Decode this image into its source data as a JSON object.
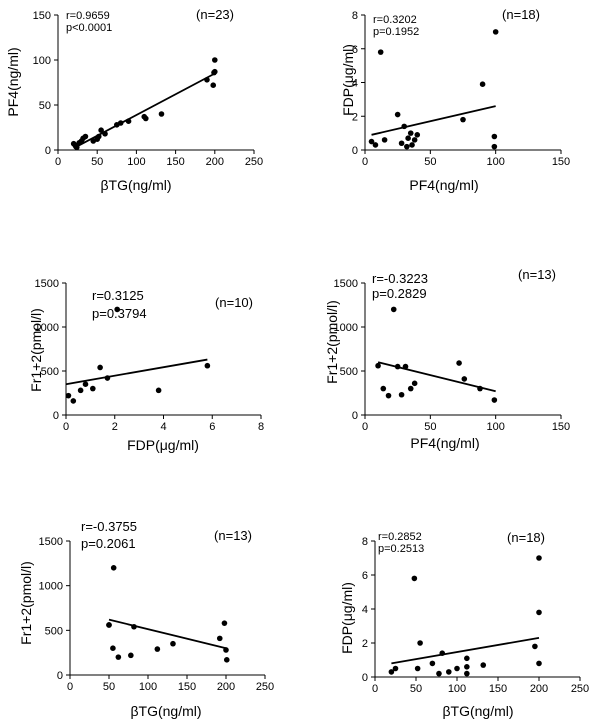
{
  "chart_data": [
    {
      "type": "scatter",
      "xlabel": "βTG(ng/ml)",
      "ylabel": "PF4(ng/ml)",
      "xlim": [
        0,
        250
      ],
      "ylim": [
        0,
        150
      ],
      "xticks": [
        "0",
        "50",
        "100",
        "150",
        "200",
        "250"
      ],
      "yticks": [
        "0",
        "50",
        "100",
        "150"
      ],
      "stat_r": "r=0.9659",
      "stat_p": "p<0.0001",
      "n_label": "(n=23)",
      "regression": [
        [
          20,
          2
        ],
        [
          200,
          85
        ]
      ],
      "points": [
        [
          20,
          7
        ],
        [
          24,
          3
        ],
        [
          27,
          8
        ],
        [
          30,
          10
        ],
        [
          32,
          13
        ],
        [
          35,
          15
        ],
        [
          45,
          10
        ],
        [
          50,
          12
        ],
        [
          52,
          15
        ],
        [
          55,
          22
        ],
        [
          60,
          18
        ],
        [
          75,
          28
        ],
        [
          80,
          30
        ],
        [
          90,
          32
        ],
        [
          110,
          37
        ],
        [
          112,
          35
        ],
        [
          132,
          40
        ],
        [
          190,
          78
        ],
        [
          198,
          72
        ],
        [
          199,
          86
        ],
        [
          200,
          100
        ],
        [
          200,
          87
        ],
        [
          22,
          5
        ]
      ]
    },
    {
      "type": "scatter",
      "xlabel": "PF4(ng/ml)",
      "ylabel": "FDP(μg/ml)",
      "xlim": [
        0,
        150
      ],
      "ylim": [
        0,
        8
      ],
      "xticks": [
        "0",
        "50",
        "100",
        "150"
      ],
      "yticks": [
        "0",
        "2",
        "4",
        "6",
        "8"
      ],
      "stat_r": "r=0.3202",
      "stat_p": "p=0.1952",
      "n_label": "(n=18)",
      "regression": [
        [
          5,
          0.9
        ],
        [
          100,
          2.6
        ]
      ],
      "points": [
        [
          5,
          0.5
        ],
        [
          8,
          0.3
        ],
        [
          12,
          5.8
        ],
        [
          15,
          0.6
        ],
        [
          25,
          2.1
        ],
        [
          28,
          0.4
        ],
        [
          30,
          1.4
        ],
        [
          32,
          0.2
        ],
        [
          33,
          0.7
        ],
        [
          35,
          1.0
        ],
        [
          36,
          0.3
        ],
        [
          38,
          0.6
        ],
        [
          40,
          0.9
        ],
        [
          75,
          1.8
        ],
        [
          90,
          3.9
        ],
        [
          99,
          0.8
        ],
        [
          100,
          7.0
        ],
        [
          99,
          0.2
        ]
      ]
    },
    {
      "type": "scatter",
      "xlabel": "FDP(μg/ml)",
      "ylabel": "Fr1+2(pmol/l)",
      "xlim": [
        0,
        8
      ],
      "ylim": [
        0,
        1500
      ],
      "xticks": [
        "0",
        "2",
        "4",
        "6",
        "8"
      ],
      "yticks": [
        "0",
        "500",
        "1000",
        "1500"
      ],
      "stat_r": "r=0.3125",
      "stat_p": "p=0.3794",
      "n_label": "(n=10)",
      "regression": [
        [
          0,
          350
        ],
        [
          5.8,
          630
        ]
      ],
      "points": [
        [
          0.1,
          220
        ],
        [
          0.3,
          160
        ],
        [
          0.6,
          280
        ],
        [
          0.8,
          350
        ],
        [
          1.1,
          300
        ],
        [
          1.4,
          540
        ],
        [
          1.7,
          420
        ],
        [
          2.1,
          1200
        ],
        [
          3.8,
          280
        ],
        [
          5.8,
          560
        ]
      ]
    },
    {
      "type": "scatter",
      "xlabel": "PF4(ng/ml)",
      "ylabel": "Fr1+2(pmol/l)",
      "xlim": [
        0,
        150
      ],
      "ylim": [
        0,
        1500
      ],
      "xticks": [
        "0",
        "50",
        "100",
        "150"
      ],
      "yticks": [
        "0",
        "500",
        "1000",
        "1500"
      ],
      "stat_r": "r=-0.3223",
      "stat_p": "p=0.2829",
      "n_label": "(n=13)",
      "regression": [
        [
          10,
          600
        ],
        [
          100,
          270
        ]
      ],
      "points": [
        [
          10,
          560
        ],
        [
          14,
          300
        ],
        [
          18,
          220
        ],
        [
          22,
          1200
        ],
        [
          28,
          230
        ],
        [
          31,
          550
        ],
        [
          35,
          300
        ],
        [
          38,
          360
        ],
        [
          72,
          590
        ],
        [
          76,
          410
        ],
        [
          88,
          300
        ],
        [
          99,
          170
        ],
        [
          25,
          550
        ]
      ]
    },
    {
      "type": "scatter",
      "xlabel": "βTG(ng/ml)",
      "ylabel": "Fr1+2(pmol/l)",
      "xlim": [
        0,
        250
      ],
      "ylim": [
        0,
        1500
      ],
      "xticks": [
        "0",
        "50",
        "100",
        "150",
        "200",
        "250"
      ],
      "yticks": [
        "0",
        "500",
        "1000",
        "1500"
      ],
      "stat_r": "r=-0.3755",
      "stat_p": "p=0.2061",
      "n_label": "(n=13)",
      "regression": [
        [
          50,
          620
        ],
        [
          200,
          300
        ]
      ],
      "points": [
        [
          50,
          560
        ],
        [
          55,
          300
        ],
        [
          56,
          1200
        ],
        [
          62,
          200
        ],
        [
          78,
          220
        ],
        [
          82,
          540
        ],
        [
          112,
          290
        ],
        [
          132,
          350
        ],
        [
          192,
          410
        ],
        [
          198,
          580
        ],
        [
          200,
          280
        ],
        [
          201,
          170
        ],
        [
          50,
          560
        ]
      ]
    },
    {
      "type": "scatter",
      "xlabel": "βTG(ng/ml)",
      "ylabel": "FDP(μg/ml)",
      "xlim": [
        0,
        250
      ],
      "ylim": [
        0,
        8
      ],
      "xticks": [
        "0",
        "50",
        "100",
        "150",
        "200",
        "250"
      ],
      "yticks": [
        "0",
        "2",
        "4",
        "6",
        "8"
      ],
      "stat_r": "r=0.2852",
      "stat_p": "p=0.2513",
      "n_label": "(n=18)",
      "regression": [
        [
          20,
          0.8
        ],
        [
          200,
          2.3
        ]
      ],
      "points": [
        [
          20,
          0.3
        ],
        [
          25,
          0.5
        ],
        [
          48,
          5.8
        ],
        [
          52,
          0.5
        ],
        [
          55,
          2.0
        ],
        [
          70,
          0.8
        ],
        [
          78,
          0.2
        ],
        [
          82,
          1.4
        ],
        [
          90,
          0.3
        ],
        [
          100,
          0.5
        ],
        [
          112,
          1.1
        ],
        [
          112,
          0.6
        ],
        [
          112,
          0.2
        ],
        [
          132,
          0.7
        ],
        [
          195,
          1.8
        ],
        [
          200,
          3.8
        ],
        [
          200,
          7.0
        ],
        [
          200,
          0.8
        ]
      ]
    }
  ]
}
